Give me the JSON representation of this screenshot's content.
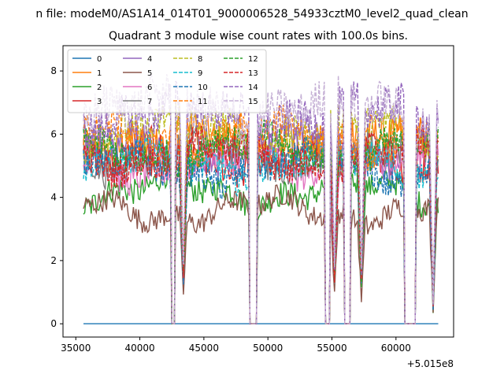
{
  "chart_data": {
    "type": "line",
    "suptitle": "n file: modeM0/AS1A14_014T01_9000006528_54933cztM0_level2_quad_clean",
    "title": "Quadrant 3 module wise count rates with 100.0s bins.",
    "xlabel": "",
    "ylabel": "",
    "x_offset_label": "+5.015e8",
    "xlim": [
      34000,
      64500
    ],
    "ylim": [
      -0.42,
      8.8
    ],
    "xticks": [
      35000,
      40000,
      45000,
      50000,
      55000,
      60000
    ],
    "xtick_labels": [
      "35000",
      "40000",
      "45000",
      "50000",
      "55000",
      "60000"
    ],
    "yticks": [
      0,
      2,
      4,
      6,
      8
    ],
    "ytick_labels": [
      "0",
      "2",
      "4",
      "6",
      "8"
    ],
    "x_range": [
      35600,
      63300
    ],
    "bin_width": 100,
    "gaps": [
      [
        42500,
        42700
      ],
      [
        48600,
        49100
      ],
      [
        54500,
        54800
      ],
      [
        56000,
        56400
      ],
      [
        60700,
        61500
      ]
    ],
    "dips": [
      [
        43400,
        1.7
      ],
      [
        55200,
        1.6
      ],
      [
        57300,
        1.4
      ],
      [
        62900,
        0.6
      ]
    ],
    "legend_position": "upper left",
    "series": [
      {
        "name": "0",
        "color": "#1f77b4",
        "style": "solid",
        "baseline": 0.0,
        "flat": true
      },
      {
        "name": "1",
        "color": "#ff7f0e",
        "style": "solid",
        "baseline": 5.8
      },
      {
        "name": "2",
        "color": "#2ca02c",
        "style": "solid",
        "baseline": 4.2
      },
      {
        "name": "3",
        "color": "#d62728",
        "style": "solid",
        "baseline": 5.2
      },
      {
        "name": "4",
        "color": "#9467bd",
        "style": "solid",
        "baseline": 5.6
      },
      {
        "name": "5",
        "color": "#8c564b",
        "style": "solid",
        "baseline": 3.6
      },
      {
        "name": "6",
        "color": "#e377c2",
        "style": "solid",
        "baseline": 5.0
      },
      {
        "name": "7",
        "color": "#7f7f7f",
        "style": "solid",
        "baseline": 5.3
      },
      {
        "name": "8",
        "color": "#bcbd22",
        "style": "dashed",
        "baseline": 6.1
      },
      {
        "name": "9",
        "color": "#17becf",
        "style": "dashed",
        "baseline": 5.1
      },
      {
        "name": "10",
        "color": "#1f77b4",
        "style": "dashed",
        "baseline": 4.9
      },
      {
        "name": "11",
        "color": "#ff7f0e",
        "style": "dashed",
        "baseline": 5.9
      },
      {
        "name": "12",
        "color": "#2ca02c",
        "style": "dashed",
        "baseline": 5.5
      },
      {
        "name": "13",
        "color": "#d62728",
        "style": "dashed",
        "baseline": 5.3
      },
      {
        "name": "14",
        "color": "#9467bd",
        "style": "dashed",
        "baseline": 6.6
      },
      {
        "name": "15",
        "color": "#c5b0d5",
        "style": "dashed",
        "baseline": 6.8
      }
    ]
  }
}
